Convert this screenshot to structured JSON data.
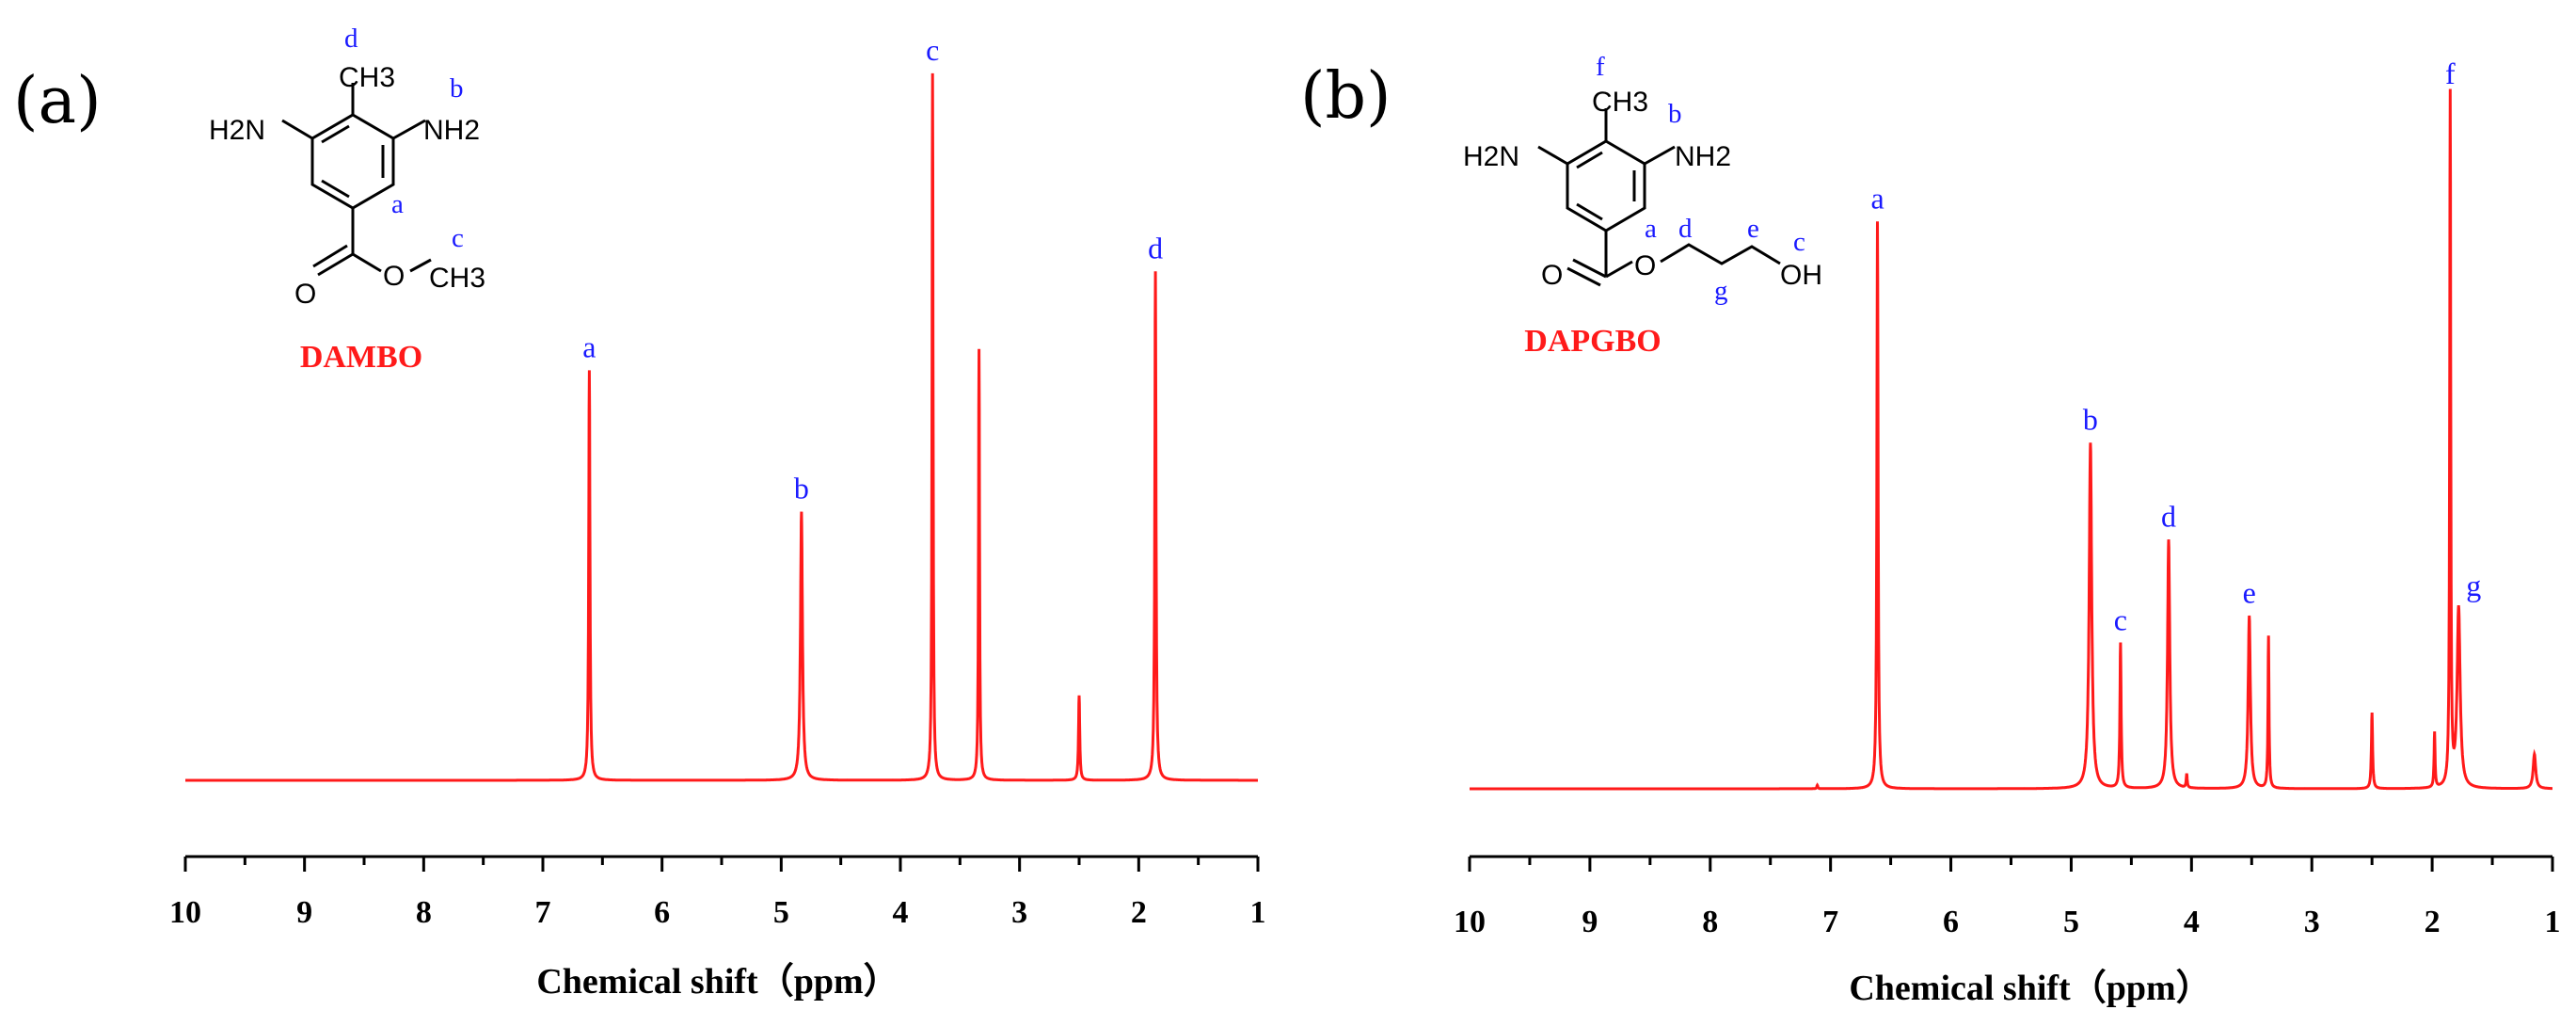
{
  "colors": {
    "spectrum": "#ff1a1a",
    "peak_label": "#1a1aff",
    "compound_name": "#ff1a1a",
    "axis": "#000000"
  },
  "chart_data": [
    {
      "type": "line",
      "panel_label": "(a)",
      "compound": "DAMBO",
      "xlabel": "Chemical shift（ppm）",
      "ylabel": "",
      "xlim": [
        10,
        1
      ],
      "x_reversed": true,
      "x_ticks": [
        10,
        9,
        8,
        7,
        6,
        5,
        4,
        3,
        2,
        1
      ],
      "grid": false,
      "peaks": [
        {
          "ppm": 6.61,
          "height": 0.58,
          "width": 0.012,
          "label": "a"
        },
        {
          "ppm": 4.83,
          "height": 0.38,
          "width": 0.02,
          "label": "b"
        },
        {
          "ppm": 3.73,
          "height": 1.0,
          "width": 0.01,
          "label": "c"
        },
        {
          "ppm": 3.34,
          "height": 0.61,
          "width": 0.01,
          "label": ""
        },
        {
          "ppm": 2.5,
          "height": 0.12,
          "width": 0.012,
          "label": ""
        },
        {
          "ppm": 1.86,
          "height": 0.72,
          "width": 0.012,
          "label": "d"
        }
      ],
      "molecule": {
        "atoms": {
          "left_amine": "H2N",
          "right_amine": "NH2",
          "methyl_top": "CH3",
          "carbonyl_o": "O",
          "ester_o": "O",
          "methyl_ester": "CH3"
        },
        "site_labels": {
          "ring_h": "a",
          "amine": "b",
          "ester_methyl": "c",
          "ring_methyl": "d"
        }
      }
    },
    {
      "type": "line",
      "panel_label": "(b)",
      "compound": "DAPGBO",
      "xlabel": "Chemical shift（ppm）",
      "ylabel": "",
      "xlim": [
        10,
        1
      ],
      "x_reversed": true,
      "x_ticks": [
        10,
        9,
        8,
        7,
        6,
        5,
        4,
        3,
        2,
        1
      ],
      "grid": false,
      "peaks": [
        {
          "ppm": 7.11,
          "height": 0.005,
          "width": 0.01,
          "label": ""
        },
        {
          "ppm": 6.61,
          "height": 0.82,
          "width": 0.012,
          "label": "a"
        },
        {
          "ppm": 4.84,
          "height": 0.5,
          "width": 0.025,
          "label": "b"
        },
        {
          "ppm": 4.59,
          "height": 0.21,
          "width": 0.012,
          "label": "c"
        },
        {
          "ppm": 4.19,
          "height": 0.36,
          "width": 0.022,
          "label": "d"
        },
        {
          "ppm": 4.04,
          "height": 0.02,
          "width": 0.01,
          "label": ""
        },
        {
          "ppm": 3.52,
          "height": 0.25,
          "width": 0.022,
          "label": "e"
        },
        {
          "ppm": 3.36,
          "height": 0.22,
          "width": 0.01,
          "label": ""
        },
        {
          "ppm": 2.5,
          "height": 0.11,
          "width": 0.012,
          "label": ""
        },
        {
          "ppm": 1.98,
          "height": 0.08,
          "width": 0.01,
          "label": ""
        },
        {
          "ppm": 1.85,
          "height": 1.0,
          "width": 0.01,
          "label": "f"
        },
        {
          "ppm": 1.78,
          "height": 0.26,
          "width": 0.03,
          "label": "g"
        },
        {
          "ppm": 1.15,
          "height": 0.05,
          "width": 0.025,
          "label": ""
        }
      ],
      "molecule": {
        "atoms": {
          "left_amine": "H2N",
          "right_amine": "NH2",
          "methyl_top": "CH3",
          "carbonyl_o": "O",
          "ester_o": "O",
          "hydroxyl": "OH"
        },
        "site_labels": {
          "ring_h": "a",
          "amine": "b",
          "hydroxyl": "c",
          "och2": "d",
          "ch2oh": "e",
          "ring_methyl": "f",
          "middle_ch2": "g"
        }
      }
    }
  ]
}
